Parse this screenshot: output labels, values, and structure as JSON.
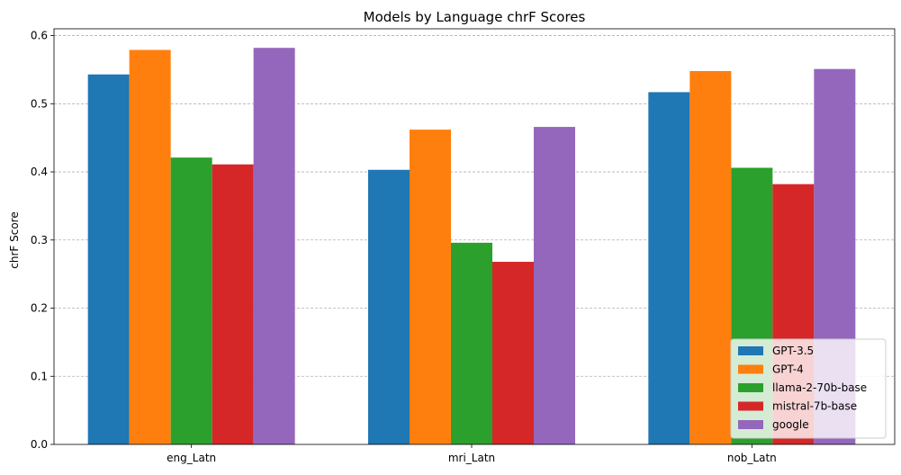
{
  "chart_data": {
    "type": "bar",
    "title": "Models by Language chrF Scores",
    "xlabel": "",
    "ylabel": "chrF Score",
    "ylim": [
      0,
      0.61
    ],
    "yticks": [
      0.0,
      0.1,
      0.2,
      0.3,
      0.4,
      0.5,
      0.6
    ],
    "ytick_labels": [
      "0.0",
      "0.1",
      "0.2",
      "0.3",
      "0.4",
      "0.5",
      "0.6"
    ],
    "categories": [
      "eng_Latn",
      "mri_Latn",
      "nob_Latn"
    ],
    "grid": "y-dashed",
    "legend_position": "lower-right",
    "series": [
      {
        "name": "GPT-3.5",
        "color": "#1f77b4",
        "values": [
          0.543,
          0.403,
          0.517
        ]
      },
      {
        "name": "GPT-4",
        "color": "#ff7f0e",
        "values": [
          0.579,
          0.462,
          0.548
        ]
      },
      {
        "name": "llama-2-70b-base",
        "color": "#2ca02c",
        "values": [
          0.421,
          0.296,
          0.406
        ]
      },
      {
        "name": "mistral-7b-base",
        "color": "#d62728",
        "values": [
          0.411,
          0.268,
          0.382
        ]
      },
      {
        "name": "google",
        "color": "#9467bd",
        "values": [
          0.582,
          0.466,
          0.551
        ]
      }
    ]
  }
}
